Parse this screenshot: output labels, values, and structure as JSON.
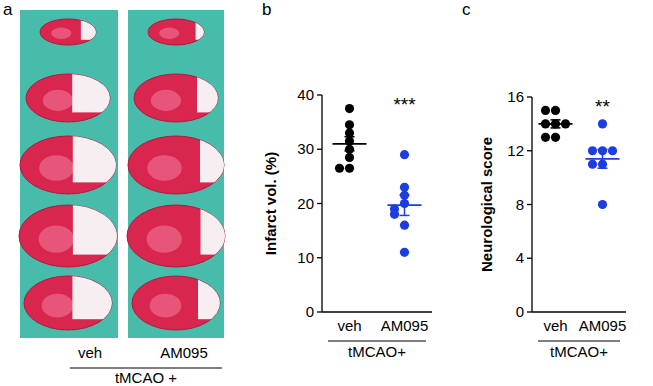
{
  "panel_a": {
    "label": "a",
    "columns": [
      "veh",
      "AM095"
    ],
    "group_label": "tMCAO +"
  },
  "chart_data": [
    {
      "type": "scatter",
      "title": "b",
      "ylabel": "Infarct vol. (%)",
      "xlabel": "tMCAO+",
      "categories": [
        "veh",
        "AM095"
      ],
      "points": [
        [
          37.5,
          34.5,
          33,
          31.5,
          30,
          28.5,
          26.5,
          26.5
        ],
        [
          29,
          23,
          21.5,
          20,
          19,
          18,
          16,
          11
        ]
      ],
      "means": [
        31,
        19.7
      ],
      "errors": [
        1.3,
        1.9
      ],
      "colors": [
        "#000000",
        "#1e3de0"
      ],
      "ylim": [
        0,
        40
      ],
      "yticks": [
        0,
        10,
        20,
        30,
        40
      ],
      "annotations": [
        {
          "text": "***",
          "category": "AM095"
        }
      ]
    },
    {
      "type": "scatter",
      "title": "c",
      "ylabel": "Neurological score",
      "xlabel": "tMCAO+",
      "categories": [
        "veh",
        "AM095"
      ],
      "points": [
        [
          15,
          15,
          14,
          14,
          14,
          13,
          13
        ],
        [
          14,
          12,
          12,
          12,
          11,
          11,
          8
        ]
      ],
      "means": [
        14,
        11.4
      ],
      "errors": [
        0.3,
        0.7
      ],
      "colors": [
        "#000000",
        "#1e3de0"
      ],
      "ylim": [
        0,
        16
      ],
      "yticks": [
        0,
        4,
        8,
        12,
        16
      ],
      "annotations": [
        {
          "text": "**",
          "category": "AM095"
        }
      ]
    }
  ]
}
